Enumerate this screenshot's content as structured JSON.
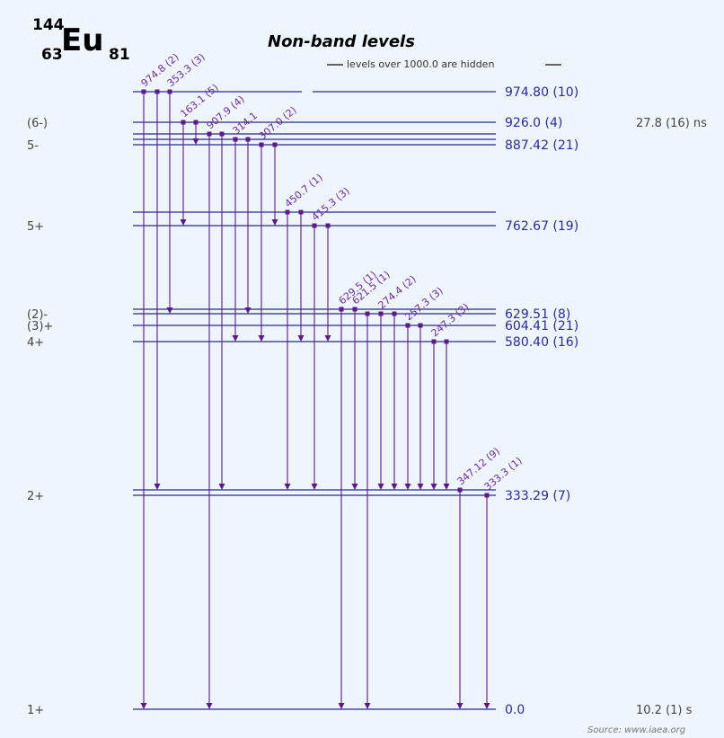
{
  "nuclide": {
    "mass": "144",
    "symbol": "Eu",
    "z": "63",
    "n": "81"
  },
  "title": "Non-band levels",
  "hidden_note": "levels over 1000.0 are hidden",
  "source": "Source: www.iaea.org",
  "levels": [
    {
      "energy": "974.80 (10)",
      "spin": "",
      "halflife": ""
    },
    {
      "energy": "926.0 (4)",
      "spin": "(6-)",
      "halflife": "27.8 (16) ns"
    },
    {
      "energy": "",
      "spin": "",
      "halflife": ""
    },
    {
      "energy": "",
      "spin": "",
      "halflife": ""
    },
    {
      "energy": "887.42 (21)",
      "spin": "5-",
      "halflife": ""
    },
    {
      "energy": "",
      "spin": "",
      "halflife": ""
    },
    {
      "energy": "762.67 (19)",
      "spin": "5+",
      "halflife": ""
    },
    {
      "energy": "",
      "spin": "",
      "halflife": ""
    },
    {
      "energy": "629.51 (8)",
      "spin": "(2)-",
      "halflife": ""
    },
    {
      "energy": "604.41 (21)",
      "spin": "(3)+",
      "halflife": ""
    },
    {
      "energy": "580.40 (16)",
      "spin": "4+",
      "halflife": ""
    },
    {
      "energy": "",
      "spin": "",
      "halflife": ""
    },
    {
      "energy": "333.29 (7)",
      "spin": "2+",
      "halflife": ""
    },
    {
      "energy": "0.0",
      "spin": "1+",
      "halflife": "10.2 (1) s"
    }
  ],
  "gammas": [
    {
      "label": "974.8 (2)"
    },
    {
      "label": ""
    },
    {
      "label": "353.3 (3)"
    },
    {
      "label": "163.1 (5)"
    },
    {
      "label": ""
    },
    {
      "label": "907.9 (4)"
    },
    {
      "label": ""
    },
    {
      "label": "314.1"
    },
    {
      "label": ""
    },
    {
      "label": "307.0 (2)"
    },
    {
      "label": ""
    },
    {
      "label": "450.7 (1)"
    },
    {
      "label": ""
    },
    {
      "label": "415.3 (3)"
    },
    {
      "label": ""
    },
    {
      "label": "629.5 (1)"
    },
    {
      "label": "621.5 (1)"
    },
    {
      "label": ""
    },
    {
      "label": "274.4 (2)"
    },
    {
      "label": ""
    },
    {
      "label": "257.3 (3)"
    },
    {
      "label": ""
    },
    {
      "label": "247.3 (3)"
    },
    {
      "label": ""
    },
    {
      "label": "347.12 (9)"
    },
    {
      "label": "333.3 (1)"
    }
  ]
}
